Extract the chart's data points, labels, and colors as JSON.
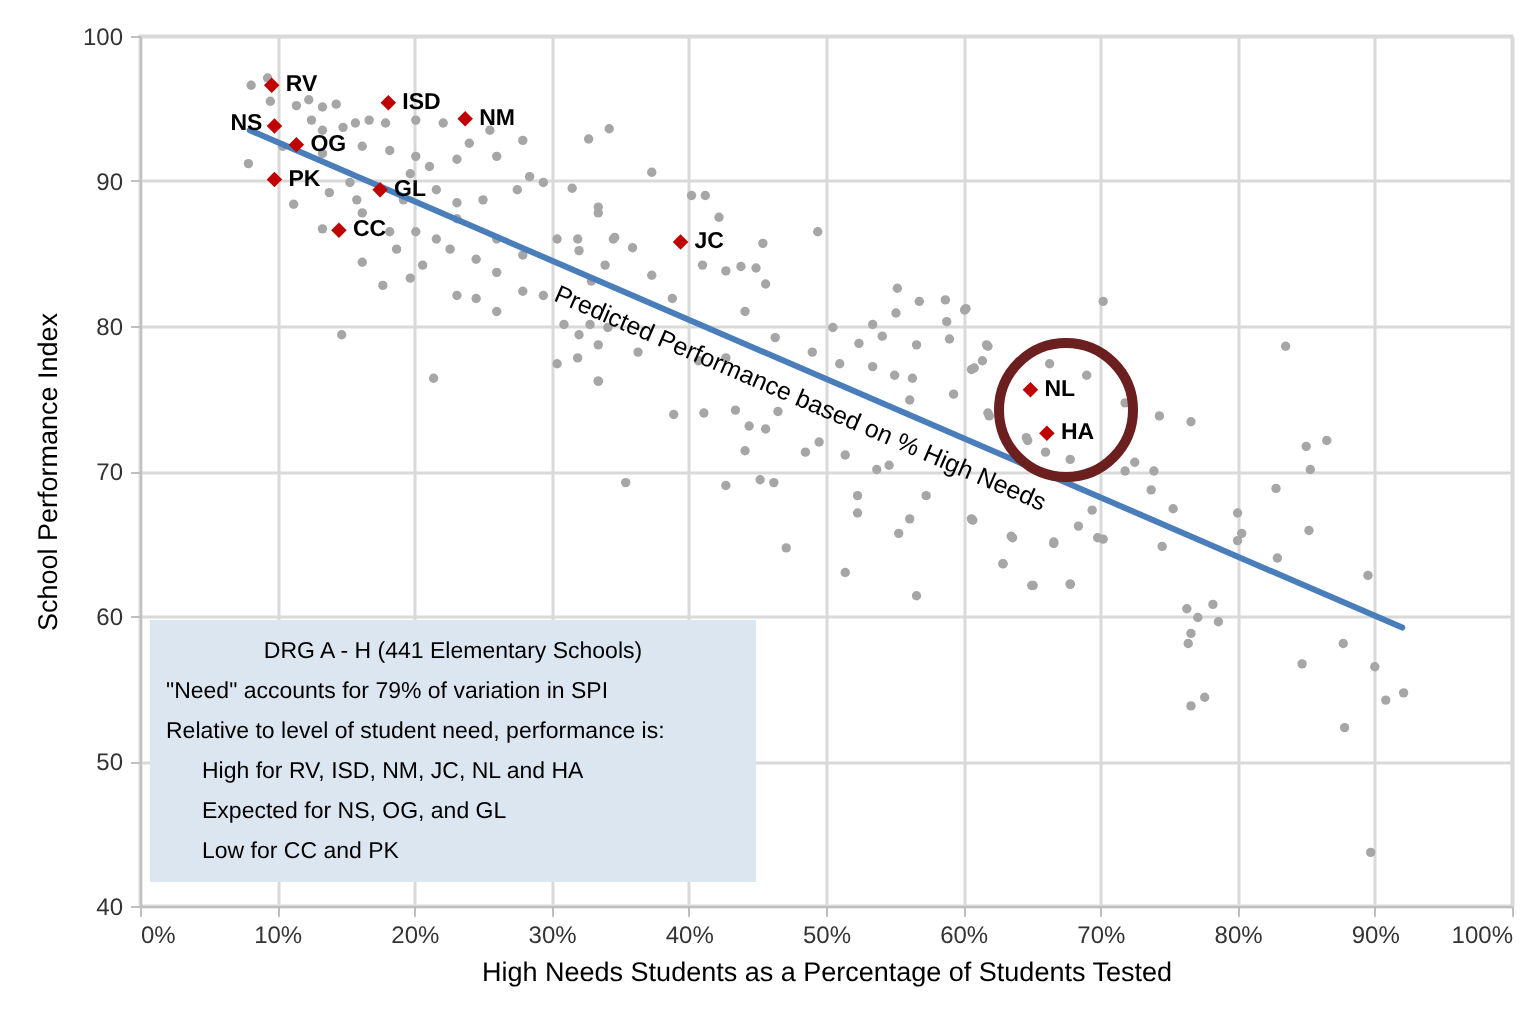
{
  "chart_data": {
    "type": "scatter",
    "xlabel": "High Needs Students as a Percentage of Students Tested",
    "ylabel": "School Performance Index",
    "xlim": [
      0,
      100
    ],
    "ylim": [
      40,
      100
    ],
    "xticks": [
      {
        "value": 0,
        "label": "0%"
      },
      {
        "value": 10,
        "label": "10%"
      },
      {
        "value": 20,
        "label": "20%"
      },
      {
        "value": 30,
        "label": "30%"
      },
      {
        "value": 40,
        "label": "40%"
      },
      {
        "value": 50,
        "label": "50%"
      },
      {
        "value": 60,
        "label": "60%"
      },
      {
        "value": 70,
        "label": "70%"
      },
      {
        "value": 80,
        "label": "80%"
      },
      {
        "value": 90,
        "label": "90%"
      },
      {
        "value": 100,
        "label": "100%"
      }
    ],
    "yticks": [
      40,
      50,
      60,
      70,
      80,
      90,
      100
    ],
    "grid": true,
    "series": [
      {
        "marker": "circle",
        "color": "#a6a6a6",
        "x": [
          8.1,
          9.3,
          9.5,
          7.9,
          11.2,
          11.4,
          12.3,
          13.3,
          14.3,
          12.5,
          13.3,
          14.8,
          15.7,
          16.7,
          17.9,
          20.1,
          22.1,
          24.0,
          25.5,
          27.9,
          32.7,
          34.2,
          10.4,
          13.3,
          16.2,
          18.2,
          20.1,
          21.1,
          23.1,
          26.0,
          28.4,
          29.4,
          15.3,
          13.8,
          15.8,
          19.7,
          19.2,
          21.6,
          23.1,
          25.0,
          27.5,
          13.3,
          16.2,
          18.2,
          20.1,
          21.6,
          23.1,
          26.0,
          16.2,
          18.7,
          20.6,
          22.6,
          24.5,
          26.0,
          27.9,
          30.4,
          31.9,
          33.4,
          34.5,
          17.7,
          19.7,
          23.1,
          24.5,
          26.0,
          27.9,
          29.4,
          30.9,
          32.8,
          31.9,
          33.4,
          30.4,
          14.7,
          21.4,
          33.4,
          37.3,
          31.5,
          33.4,
          34.6,
          32.0,
          35.9,
          33.9,
          32.9,
          37.3,
          40.2,
          41.2,
          42.2,
          45.4,
          49.4,
          41.0,
          42.7,
          43.8,
          44.9,
          45.6,
          38.8,
          44.1,
          32.0,
          34.1,
          36.3,
          33.4,
          40.7,
          42.7,
          46.3,
          49.0,
          38.9,
          41.1,
          43.4,
          44.4,
          45.6,
          44.1,
          46.5,
          48.5,
          49.5,
          35.4,
          42.7,
          45.2,
          46.2,
          47.1,
          50.5,
          53.4,
          55.2,
          56.8,
          58.7,
          60.2,
          55.1,
          58.8,
          52.4,
          54.1,
          56.6,
          59.0,
          61.7,
          51.0,
          53.4,
          55.0,
          56.3,
          60.8,
          56.1,
          59.3,
          61.8,
          51.4,
          53.7,
          54.6,
          57.3,
          52.3,
          52.3,
          56.1,
          55.3,
          60.7,
          63.6,
          51.4,
          56.6,
          62.9,
          65.0,
          67.8,
          66.6,
          64.6,
          70.2,
          83.5,
          60.1,
          61.8,
          60.6,
          61.4,
          66.3,
          69.0,
          71.8,
          74.3,
          76.6,
          61.9,
          64.7,
          66.0,
          67.8,
          71.8,
          72.5,
          73.9,
          73.7,
          75.3,
          69.4,
          68.4,
          69.8,
          70.2,
          66.6,
          63.5,
          60.6,
          74.5,
          80.0,
          80.3,
          80.0,
          82.8,
          85.0,
          86.5,
          85.3,
          85.2,
          82.9,
          89.5,
          62.9,
          65.1,
          67.8,
          76.3,
          77.1,
          78.2,
          78.6,
          76.6,
          76.4,
          84.7,
          87.7,
          90.0,
          90.8,
          92.1,
          87.8,
          76.6,
          77.6,
          89.7
        ],
        "values": [
          96.6,
          97.1,
          95.5,
          91.2,
          88.4,
          95.2,
          95.6,
          95.1,
          95.3,
          94.2,
          93.5,
          93.7,
          94.0,
          94.2,
          94.0,
          94.2,
          94.0,
          92.6,
          93.5,
          92.8,
          92.9,
          93.6,
          92.4,
          91.9,
          92.4,
          92.1,
          91.7,
          91.0,
          91.5,
          91.7,
          90.3,
          89.9,
          89.9,
          89.2,
          88.7,
          90.5,
          88.7,
          89.4,
          88.5,
          88.7,
          89.4,
          86.7,
          87.8,
          86.5,
          86.5,
          86.0,
          87.4,
          86.0,
          84.4,
          85.3,
          84.2,
          85.3,
          84.6,
          83.7,
          84.9,
          86.0,
          86.0,
          87.8,
          86.0,
          82.8,
          83.3,
          82.1,
          81.9,
          81.0,
          82.4,
          82.1,
          80.1,
          80.1,
          77.8,
          78.7,
          77.4,
          79.4,
          76.4,
          76.2,
          90.6,
          89.5,
          88.2,
          86.1,
          85.2,
          85.4,
          84.2,
          83.1,
          83.5,
          89.0,
          89.0,
          87.5,
          85.7,
          86.5,
          84.2,
          83.8,
          84.1,
          84.0,
          82.9,
          81.9,
          81.0,
          79.4,
          79.9,
          78.2,
          76.2,
          77.6,
          77.8,
          79.2,
          78.2,
          73.9,
          74.0,
          74.2,
          73.1,
          72.9,
          71.4,
          74.1,
          71.3,
          72.0,
          69.2,
          69.0,
          69.4,
          69.2,
          64.7,
          79.9,
          80.1,
          82.6,
          81.7,
          81.8,
          81.2,
          80.9,
          80.3,
          78.8,
          79.3,
          78.7,
          79.1,
          78.7,
          77.4,
          77.2,
          76.6,
          76.4,
          77.1,
          74.9,
          75.3,
          74.0,
          71.1,
          70.1,
          70.4,
          68.3,
          68.3,
          67.1,
          66.7,
          65.7,
          66.6,
          65.4,
          63.0,
          61.4,
          63.6,
          62.1,
          62.2,
          65.0,
          72.3,
          81.7,
          78.6,
          81.1,
          78.6,
          77.0,
          77.6,
          77.4,
          76.6,
          74.7,
          73.8,
          73.4,
          73.8,
          72.1,
          71.3,
          70.8,
          70.0,
          70.6,
          70.0,
          68.7,
          67.4,
          67.3,
          66.2,
          65.4,
          65.3,
          65.1,
          65.5,
          66.7,
          64.8,
          67.1,
          65.7,
          65.2,
          68.8,
          71.7,
          72.1,
          70.1,
          65.9,
          64.0,
          62.8,
          63.6,
          62.1,
          62.2,
          60.5,
          59.9,
          60.8,
          59.6,
          58.8,
          58.1,
          56.7,
          58.1,
          56.5,
          54.2,
          54.7,
          52.3,
          53.8,
          54.4,
          43.7
        ]
      },
      {
        "type": "line",
        "name": "Predicted Performance based on % High Needs",
        "color": "#4a7ebb",
        "line_style": "solid",
        "x": [
          8,
          92
        ],
        "values": [
          93.5,
          59.2
        ]
      },
      {
        "marker": "diamond",
        "color": "#c00000",
        "x": [
          9.6,
          18.1,
          23.7,
          9.8,
          11.4,
          9.8,
          17.5,
          14.5,
          39.4,
          64.9,
          66.1
        ],
        "values": [
          96.6,
          95.4,
          94.3,
          93.8,
          92.5,
          90.1,
          89.4,
          86.6,
          85.8,
          75.6,
          72.6
        ]
      }
    ],
    "annotations": [
      {
        "text": "RV",
        "x": 9.6,
        "y": 96.6
      },
      {
        "text": "ISD",
        "x": 18.1,
        "y": 95.4
      },
      {
        "text": "NM",
        "x": 23.7,
        "y": 94.3
      },
      {
        "text": "NS",
        "x": 9.8,
        "y": 93.8
      },
      {
        "text": "OG",
        "x": 11.4,
        "y": 92.5
      },
      {
        "text": "PK",
        "x": 9.8,
        "y": 90.1
      },
      {
        "text": "GL",
        "x": 17.5,
        "y": 89.4
      },
      {
        "text": "CC",
        "x": 14.5,
        "y": 86.6
      },
      {
        "text": "JC",
        "x": 39.4,
        "y": 85.8
      },
      {
        "text": "NL",
        "x": 64.9,
        "y": 75.6
      },
      {
        "text": "HA",
        "x": 66.1,
        "y": 72.6
      },
      "DRG A - H (441 Elementary Schools)",
      "\"Need\" accounts for 79% of variation in SPI",
      "Relative to level of student need, performance is:",
      "High for RV, ISD, NM, JC, NL and HA",
      "Expected for NS, OG, and GL",
      "Low for CC and PK"
    ]
  }
}
